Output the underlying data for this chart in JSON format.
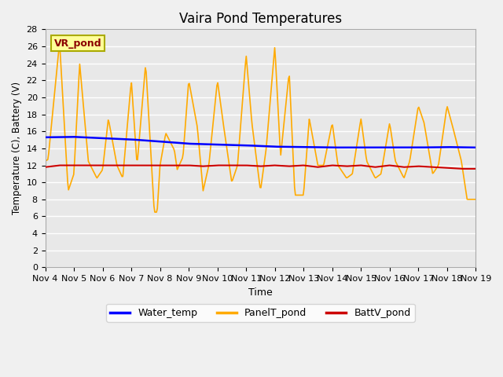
{
  "title": "Vaira Pond Temperatures",
  "xlabel": "Time",
  "ylabel": "Temperature (C), Battery (V)",
  "ylim": [
    0,
    28
  ],
  "yticks": [
    0,
    2,
    4,
    6,
    8,
    10,
    12,
    14,
    16,
    18,
    20,
    22,
    24,
    26,
    28
  ],
  "xtick_labels": [
    "Nov 4",
    "Nov 5",
    "Nov 6",
    "Nov 7",
    "Nov 8",
    "Nov 9",
    "Nov 10",
    "Nov 11",
    "Nov 12",
    "Nov 13",
    "Nov 14",
    "Nov 15",
    "Nov 16",
    "Nov 17",
    "Nov 18",
    "Nov 19"
  ],
  "bg_color": "#e8e8e8",
  "grid_color": "#ffffff",
  "water_temp_color": "#0000ff",
  "panel_temp_color": "#ffaa00",
  "batt_color": "#cc0000",
  "annotation_text": "VR_pond",
  "annotation_color": "#8b0000",
  "annotation_bg": "#ffff99",
  "panel_pts_x": [
    0,
    0.1,
    0.5,
    0.8,
    1.0,
    1.2,
    1.5,
    1.8,
    2.0,
    2.2,
    2.5,
    2.7,
    3.0,
    3.2,
    3.5,
    3.8,
    3.9,
    4.0,
    4.2,
    4.5,
    4.6,
    4.8,
    5.0,
    5.3,
    5.5,
    5.7,
    6.0,
    6.2,
    6.5,
    6.7,
    7.0,
    7.2,
    7.5,
    7.7,
    8.0,
    8.2,
    8.5,
    8.7,
    9.0,
    9.2,
    9.5,
    9.7,
    10.0,
    10.2,
    10.5,
    10.7,
    11.0,
    11.2,
    11.5,
    11.7,
    12.0,
    12.2,
    12.5,
    12.7,
    13.0,
    13.2,
    13.5,
    13.7,
    14.0,
    14.2,
    14.5,
    14.7,
    15.0
  ],
  "panel_pts_y": [
    12.5,
    12.7,
    26.5,
    9.0,
    11.0,
    24.0,
    12.5,
    10.5,
    11.5,
    17.5,
    12.0,
    10.5,
    22.0,
    12.0,
    24.0,
    6.5,
    6.5,
    12.0,
    15.8,
    13.8,
    11.5,
    13.0,
    22.0,
    16.5,
    9.0,
    12.0,
    22.0,
    17.0,
    10.0,
    12.0,
    25.0,
    17.0,
    9.0,
    14.0,
    26.0,
    13.0,
    23.0,
    8.5,
    8.5,
    17.5,
    12.0,
    12.0,
    17.0,
    12.0,
    10.5,
    11.0,
    17.5,
    12.5,
    10.5,
    11.0,
    17.0,
    12.5,
    10.5,
    12.5,
    19.0,
    17.0,
    11.0,
    12.0,
    19.0,
    16.5,
    12.5,
    8.0,
    8.0
  ],
  "batt_pts_x": [
    0,
    0.5,
    1.0,
    1.5,
    2.0,
    2.5,
    3.0,
    3.5,
    4.0,
    4.5,
    5.0,
    5.5,
    6.0,
    6.5,
    7.0,
    7.5,
    8.0,
    8.5,
    9.0,
    9.5,
    10.0,
    10.5,
    11.0,
    11.5,
    12.0,
    12.5,
    13.0,
    13.5,
    14.0,
    14.5,
    15.0
  ],
  "batt_pts_y": [
    11.8,
    12.0,
    12.0,
    12.0,
    12.0,
    12.0,
    12.0,
    12.0,
    12.0,
    12.0,
    12.0,
    11.9,
    12.0,
    12.0,
    12.0,
    11.9,
    12.0,
    11.9,
    12.0,
    11.8,
    12.0,
    11.9,
    12.0,
    11.8,
    12.0,
    11.8,
    11.9,
    11.8,
    11.7,
    11.6,
    11.6
  ],
  "water_pts_x": [
    0,
    1,
    2,
    3,
    4,
    5,
    6,
    7,
    8,
    9,
    10,
    11,
    12,
    13,
    14,
    15
  ],
  "water_pts_y": [
    15.3,
    15.35,
    15.2,
    15.05,
    14.8,
    14.55,
    14.45,
    14.35,
    14.2,
    14.15,
    14.1,
    14.1,
    14.1,
    14.1,
    14.15,
    14.1
  ],
  "n_points": 500
}
